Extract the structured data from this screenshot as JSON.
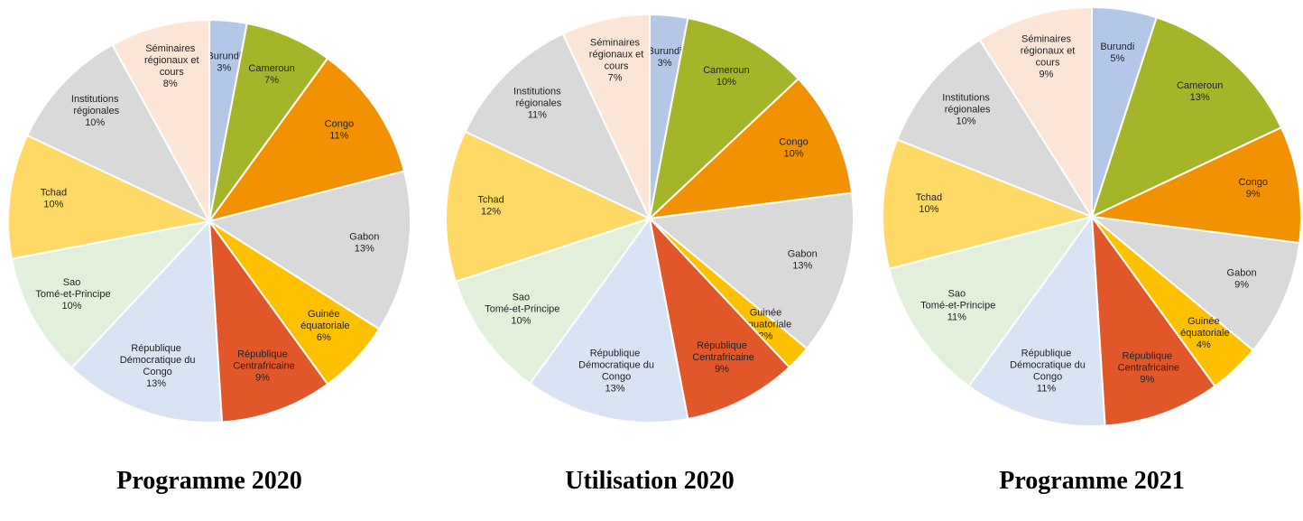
{
  "chart_data": [
    {
      "type": "pie",
      "title": "Programme 2020",
      "categories": [
        "Burundi",
        "Cameroun",
        "Congo",
        "Gabon",
        "Guinée équatoriale",
        "République Centrafricaine",
        "République Démocratique du Congo",
        "Sao Tomé-et-Principe",
        "Tchad",
        "Institutions régionales",
        "Séminaires régionaux et cours"
      ],
      "values": [
        3,
        7,
        11,
        13,
        6,
        9,
        13,
        10,
        10,
        10,
        8
      ],
      "value_labels": [
        "3%",
        "7%",
        "11%",
        "13%",
        "6%",
        "9%",
        "13%",
        "10%",
        "10%",
        "10%",
        "8%"
      ],
      "colors": [
        "#b4c7e7",
        "#a5b52a",
        "#f39200",
        "#d9d9d9",
        "#ffc000",
        "#e2572a",
        "#dae3f3",
        "#e2efda",
        "#ffd966",
        "#d9d9d9",
        "#fbe5d6"
      ]
    },
    {
      "type": "pie",
      "title": "Utilisation 2020",
      "categories": [
        "Burundi",
        "Cameroun",
        "Congo",
        "Gabon",
        "Guinée équatoriale",
        "République Centrafricaine",
        "République Démocratique du Congo",
        "Sao Tomé-et-Principe",
        "Tchad",
        "Institutions régionales",
        "Séminaires régionaux et cours"
      ],
      "values": [
        3,
        10,
        10,
        13,
        2,
        9,
        13,
        10,
        12,
        11,
        7
      ],
      "value_labels": [
        "3%",
        "10%",
        "10%",
        "13%",
        "2%",
        "9%",
        "13%",
        "10%",
        "12%",
        "11%",
        "7%"
      ],
      "colors": [
        "#b4c7e7",
        "#a5b52a",
        "#f39200",
        "#d9d9d9",
        "#ffc000",
        "#e2572a",
        "#dae3f3",
        "#e2efda",
        "#ffd966",
        "#d9d9d9",
        "#fbe5d6"
      ]
    },
    {
      "type": "pie",
      "title": "Programme 2021",
      "categories": [
        "Burundi",
        "Cameroun",
        "Congo",
        "Gabon",
        "Guinée équatoriale",
        "République Centrafricaine",
        "République Démocratique du Congo",
        "Sao Tomé-et-Principe",
        "Tchad",
        "Institutions régionales",
        "Séminaires régionaux et cours"
      ],
      "values": [
        5,
        13,
        9,
        9,
        4,
        9,
        11,
        11,
        10,
        10,
        9
      ],
      "value_labels": [
        "5%",
        "13%",
        "9%",
        "9%",
        "4%",
        "9%",
        "11%",
        "11%",
        "10%",
        "10%",
        "9%"
      ],
      "colors": [
        "#b4c7e7",
        "#a5b52a",
        "#f39200",
        "#d9d9d9",
        "#ffc000",
        "#e2572a",
        "#dae3f3",
        "#e2efda",
        "#ffd966",
        "#d9d9d9",
        "#fbe5d6"
      ]
    }
  ]
}
